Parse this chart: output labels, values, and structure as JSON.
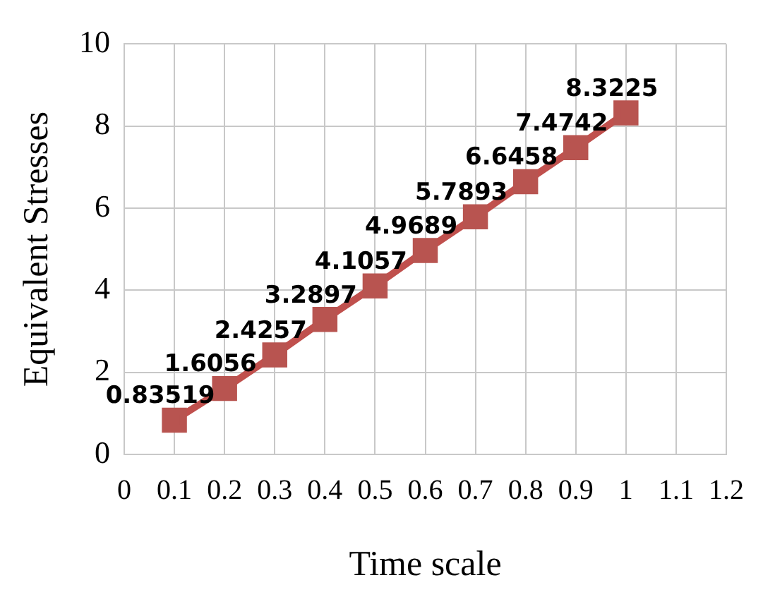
{
  "chart_data": {
    "type": "line",
    "xlabel": "Time scale",
    "ylabel": "Equivalent Stresses",
    "x": [
      0.1,
      0.2,
      0.3,
      0.4,
      0.5,
      0.6,
      0.7,
      0.8,
      0.9,
      1
    ],
    "series": [
      {
        "color": "#c0504d",
        "values": [
          0.83519,
          1.6056,
          2.4257,
          3.2897,
          4.1057,
          4.9689,
          5.7893,
          6.6458,
          7.4742,
          8.3225
        ]
      }
    ],
    "xlim": [
      0,
      1.2
    ],
    "xticks": [
      0,
      0.1,
      0.2,
      0.3,
      0.4,
      0.5,
      0.6,
      0.7,
      0.8,
      0.9,
      1,
      1.1,
      1.2
    ],
    "ylim": [
      0,
      10
    ],
    "yticks": [
      0,
      2,
      4,
      6,
      8,
      10
    ],
    "grid": true,
    "legend": false,
    "marker": "square",
    "line_style": "solid",
    "data_labels": true
  }
}
